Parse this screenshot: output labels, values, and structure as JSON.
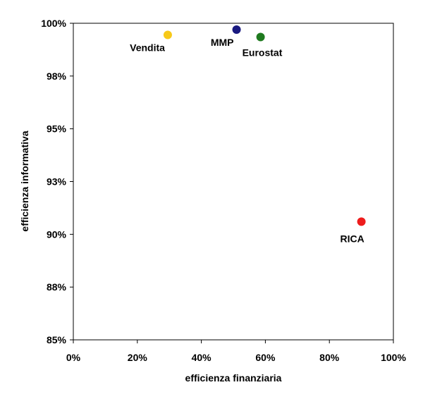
{
  "chart_data": {
    "type": "scatter",
    "xlabel": "efficienza finanziaria",
    "ylabel": "efficienza informativa",
    "xlim": [
      0,
      1
    ],
    "ylim": [
      0.85,
      1.0
    ],
    "x_ticks": [
      "0%",
      "20%",
      "40%",
      "60%",
      "80%",
      "100%"
    ],
    "x_tick_values": [
      0,
      0.2,
      0.4,
      0.6,
      0.8,
      1.0
    ],
    "y_ticks": [
      "100%",
      "98%",
      "95%",
      "93%",
      "90%",
      "88%",
      "85%"
    ],
    "y_tick_values": [
      1.0,
      0.975,
      0.95,
      0.925,
      0.9,
      0.875,
      0.85
    ],
    "grid": false,
    "legend": "none",
    "points": [
      {
        "label": "Vendita",
        "x": 0.295,
        "y": 0.9945,
        "color": "#f7c919",
        "label_pos": "below-left"
      },
      {
        "label": "MMP",
        "x": 0.51,
        "y": 0.997,
        "color": "#1a1a80",
        "label_pos": "below-left"
      },
      {
        "label": "Eurostat",
        "x": 0.585,
        "y": 0.9935,
        "color": "#1f7a1f",
        "label_pos": "below-right"
      },
      {
        "label": "RICA",
        "x": 0.9,
        "y": 0.906,
        "color": "#ee1c1c",
        "label_pos": "below"
      }
    ]
  }
}
